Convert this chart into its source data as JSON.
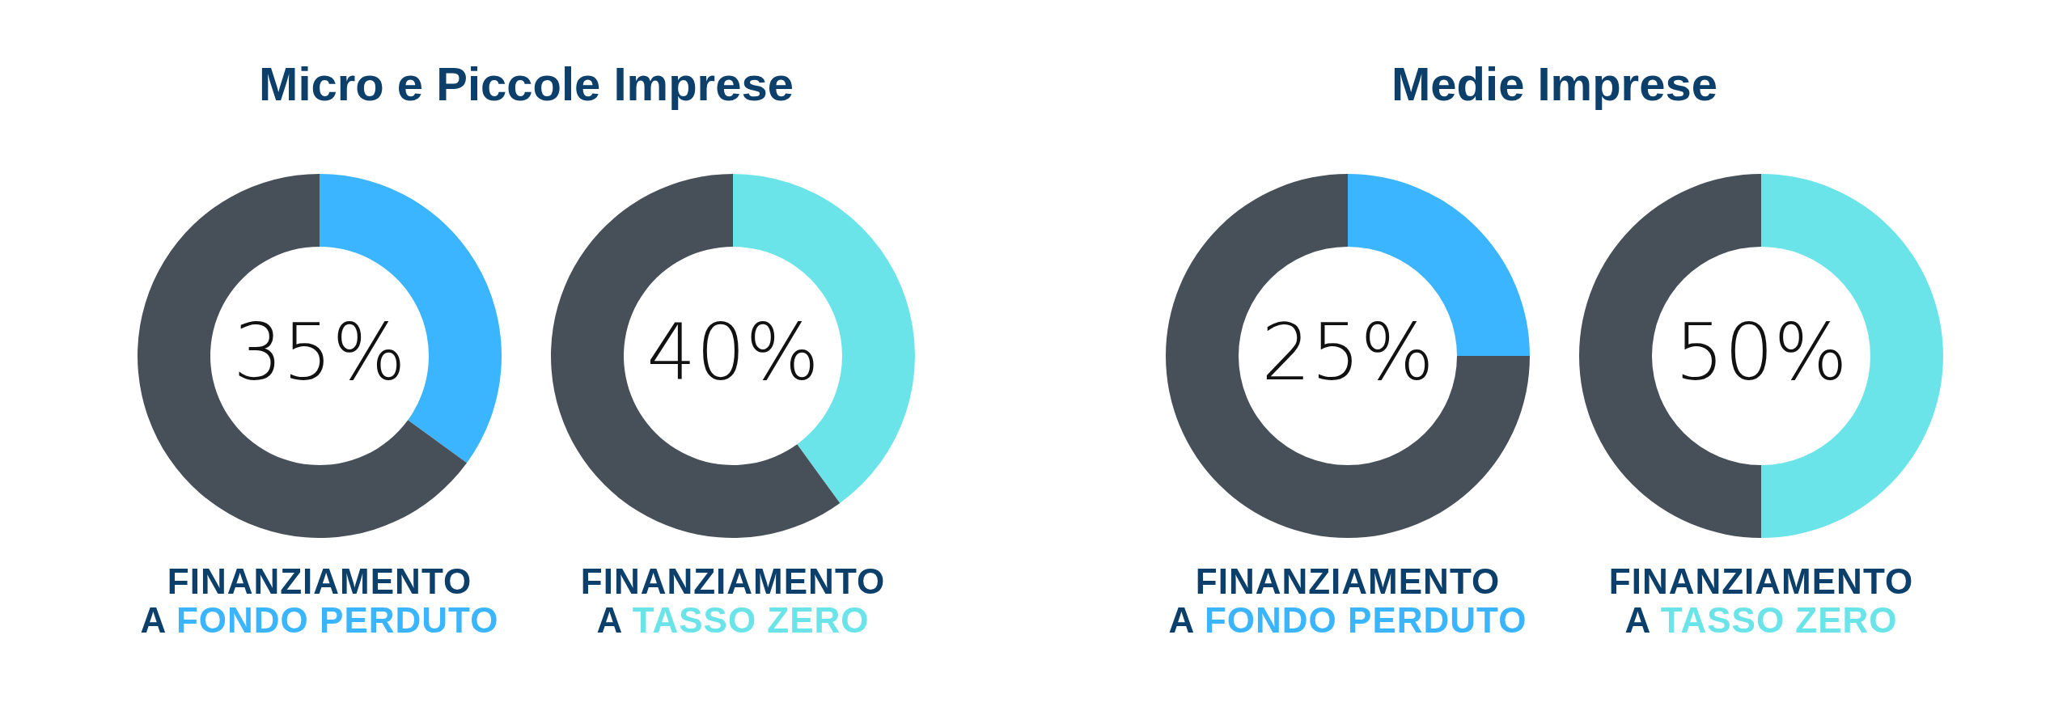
{
  "chart_data": [
    {
      "type": "donut",
      "title": "Micro e Piccole Imprese",
      "categories": [
        null,
        null
      ],
      "values": [
        35,
        65
      ],
      "colors": [
        "#3bb5ff",
        "#474f58"
      ],
      "value_labels": [
        "35%",
        null
      ],
      "xlabel": "FINANZIAMENTO A FONDO PERDUTO"
    },
    {
      "type": "donut",
      "categories": [
        null,
        null
      ],
      "values": [
        40,
        60
      ],
      "colors": [
        "#6ae4e8",
        "#474f58"
      ],
      "value_labels": [
        "40%",
        null
      ],
      "xlabel": "FINANZIAMENTO A TASSO ZERO"
    },
    {
      "type": "donut",
      "title": "Medie Imprese",
      "categories": [
        null,
        null
      ],
      "values": [
        25,
        75
      ],
      "colors": [
        "#3bb5ff",
        "#474f58"
      ],
      "value_labels": [
        "25%",
        null
      ],
      "xlabel": "FINANZIAMENTO A FONDO PERDUTO"
    },
    {
      "type": "donut",
      "categories": [
        null,
        null
      ],
      "values": [
        50,
        50
      ],
      "colors": [
        "#6ae4e8",
        "#474f58"
      ],
      "value_labels": [
        "50%",
        null
      ],
      "xlabel": "FINANZIAMENTO A TASSO ZERO"
    }
  ]
}
